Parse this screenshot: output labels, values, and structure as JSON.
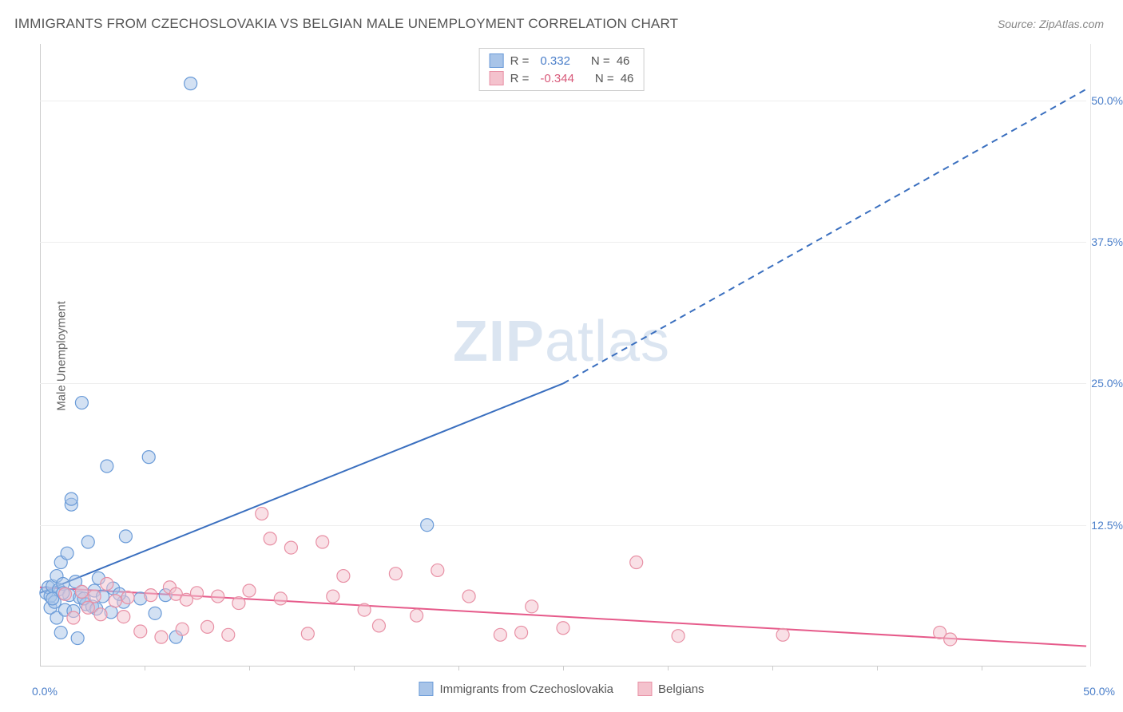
{
  "title": "IMMIGRANTS FROM CZECHOSLOVAKIA VS BELGIAN MALE UNEMPLOYMENT CORRELATION CHART",
  "source": "Source: ZipAtlas.com",
  "ylabel": "Male Unemployment",
  "watermark_a": "ZIP",
  "watermark_b": "atlas",
  "chart": {
    "type": "scatter",
    "xlim": [
      0,
      50
    ],
    "ylim": [
      0,
      55
    ],
    "xtick_origin": "0.0%",
    "xtick_max": "50.0%",
    "xtick_minor_step": 5,
    "yticks": [
      {
        "v": 12.5,
        "label": "12.5%"
      },
      {
        "v": 25.0,
        "label": "25.0%"
      },
      {
        "v": 37.5,
        "label": "37.5%"
      },
      {
        "v": 50.0,
        "label": "50.0%"
      }
    ],
    "grid_color": "#eeeeee",
    "background_color": "#ffffff",
    "marker_radius": 8,
    "marker_opacity": 0.5,
    "series": [
      {
        "name": "Immigrants from Czechoslovakia",
        "color_fill": "#a8c4e8",
        "color_stroke": "#6a9bd8",
        "R": "0.332",
        "N": "46",
        "regression": {
          "solid": {
            "x1": 0,
            "y1": 6.5,
            "x2": 25,
            "y2": 25
          },
          "dashed": {
            "x1": 25,
            "y1": 25,
            "x2": 50,
            "y2": 51
          },
          "color": "#3a6fbf",
          "width": 2
        },
        "points": [
          {
            "x": 0.3,
            "y": 6.5
          },
          {
            "x": 0.4,
            "y": 7.0
          },
          {
            "x": 0.5,
            "y": 5.2
          },
          {
            "x": 0.5,
            "y": 6.2
          },
          {
            "x": 0.6,
            "y": 7.1
          },
          {
            "x": 0.7,
            "y": 5.7
          },
          {
            "x": 0.8,
            "y": 4.3
          },
          {
            "x": 0.8,
            "y": 8.0
          },
          {
            "x": 0.9,
            "y": 6.8
          },
          {
            "x": 1.0,
            "y": 3.0
          },
          {
            "x": 1.0,
            "y": 9.2
          },
          {
            "x": 1.1,
            "y": 7.3
          },
          {
            "x": 1.2,
            "y": 5.0
          },
          {
            "x": 1.3,
            "y": 10.0
          },
          {
            "x": 1.4,
            "y": 6.3
          },
          {
            "x": 1.5,
            "y": 14.3
          },
          {
            "x": 1.5,
            "y": 14.8
          },
          {
            "x": 1.6,
            "y": 4.9
          },
          {
            "x": 1.8,
            "y": 2.5
          },
          {
            "x": 1.9,
            "y": 6.1
          },
          {
            "x": 2.0,
            "y": 6.6
          },
          {
            "x": 2.0,
            "y": 23.3
          },
          {
            "x": 2.2,
            "y": 5.5
          },
          {
            "x": 2.3,
            "y": 11.0
          },
          {
            "x": 2.5,
            "y": 5.3
          },
          {
            "x": 2.6,
            "y": 6.7
          },
          {
            "x": 2.8,
            "y": 7.8
          },
          {
            "x": 3.0,
            "y": 6.2
          },
          {
            "x": 3.2,
            "y": 17.7
          },
          {
            "x": 3.4,
            "y": 4.8
          },
          {
            "x": 3.5,
            "y": 6.9
          },
          {
            "x": 4.0,
            "y": 5.7
          },
          {
            "x": 4.1,
            "y": 11.5
          },
          {
            "x": 4.8,
            "y": 6.0
          },
          {
            "x": 5.2,
            "y": 18.5
          },
          {
            "x": 5.5,
            "y": 4.7
          },
          {
            "x": 6.0,
            "y": 6.3
          },
          {
            "x": 6.5,
            "y": 2.6
          },
          {
            "x": 7.2,
            "y": 51.5
          },
          {
            "x": 18.5,
            "y": 12.5
          },
          {
            "x": 2.1,
            "y": 6.0
          },
          {
            "x": 2.7,
            "y": 5.1
          },
          {
            "x": 3.8,
            "y": 6.4
          },
          {
            "x": 1.7,
            "y": 7.5
          },
          {
            "x": 0.6,
            "y": 6.0
          },
          {
            "x": 1.1,
            "y": 6.5
          }
        ]
      },
      {
        "name": "Belgians",
        "color_fill": "#f4c2cd",
        "color_stroke": "#e890a5",
        "R": "-0.344",
        "N": "46",
        "regression": {
          "solid": {
            "x1": 0,
            "y1": 7.0,
            "x2": 50,
            "y2": 1.8
          },
          "dashed": null,
          "color": "#e65a8a",
          "width": 2
        },
        "points": [
          {
            "x": 1.2,
            "y": 6.4
          },
          {
            "x": 1.6,
            "y": 4.3
          },
          {
            "x": 2.0,
            "y": 6.6
          },
          {
            "x": 2.3,
            "y": 5.2
          },
          {
            "x": 2.6,
            "y": 6.2
          },
          {
            "x": 2.9,
            "y": 4.6
          },
          {
            "x": 3.2,
            "y": 7.3
          },
          {
            "x": 3.6,
            "y": 5.8
          },
          {
            "x": 4.0,
            "y": 4.4
          },
          {
            "x": 4.2,
            "y": 6.1
          },
          {
            "x": 4.8,
            "y": 3.1
          },
          {
            "x": 5.3,
            "y": 6.3
          },
          {
            "x": 5.8,
            "y": 2.6
          },
          {
            "x": 6.2,
            "y": 7.0
          },
          {
            "x": 6.5,
            "y": 6.4
          },
          {
            "x": 7.0,
            "y": 5.9
          },
          {
            "x": 7.5,
            "y": 6.5
          },
          {
            "x": 8.0,
            "y": 3.5
          },
          {
            "x": 8.5,
            "y": 6.2
          },
          {
            "x": 9.0,
            "y": 2.8
          },
          {
            "x": 9.5,
            "y": 5.6
          },
          {
            "x": 10.0,
            "y": 6.7
          },
          {
            "x": 10.6,
            "y": 13.5
          },
          {
            "x": 11.0,
            "y": 11.3
          },
          {
            "x": 11.5,
            "y": 6.0
          },
          {
            "x": 12.0,
            "y": 10.5
          },
          {
            "x": 12.8,
            "y": 2.9
          },
          {
            "x": 13.5,
            "y": 11.0
          },
          {
            "x": 14.0,
            "y": 6.2
          },
          {
            "x": 14.5,
            "y": 8.0
          },
          {
            "x": 15.5,
            "y": 5.0
          },
          {
            "x": 17.0,
            "y": 8.2
          },
          {
            "x": 18.0,
            "y": 4.5
          },
          {
            "x": 19.0,
            "y": 8.5
          },
          {
            "x": 20.5,
            "y": 6.2
          },
          {
            "x": 22.0,
            "y": 2.8
          },
          {
            "x": 23.0,
            "y": 3.0
          },
          {
            "x": 23.5,
            "y": 5.3
          },
          {
            "x": 25.0,
            "y": 3.4
          },
          {
            "x": 28.5,
            "y": 9.2
          },
          {
            "x": 30.5,
            "y": 2.7
          },
          {
            "x": 35.5,
            "y": 2.8
          },
          {
            "x": 43.0,
            "y": 3.0
          },
          {
            "x": 43.5,
            "y": 2.4
          },
          {
            "x": 6.8,
            "y": 3.3
          },
          {
            "x": 16.2,
            "y": 3.6
          }
        ]
      }
    ]
  },
  "legend_bottom": {
    "item1": "Immigrants from Czechoslovakia",
    "item2": "Belgians"
  }
}
